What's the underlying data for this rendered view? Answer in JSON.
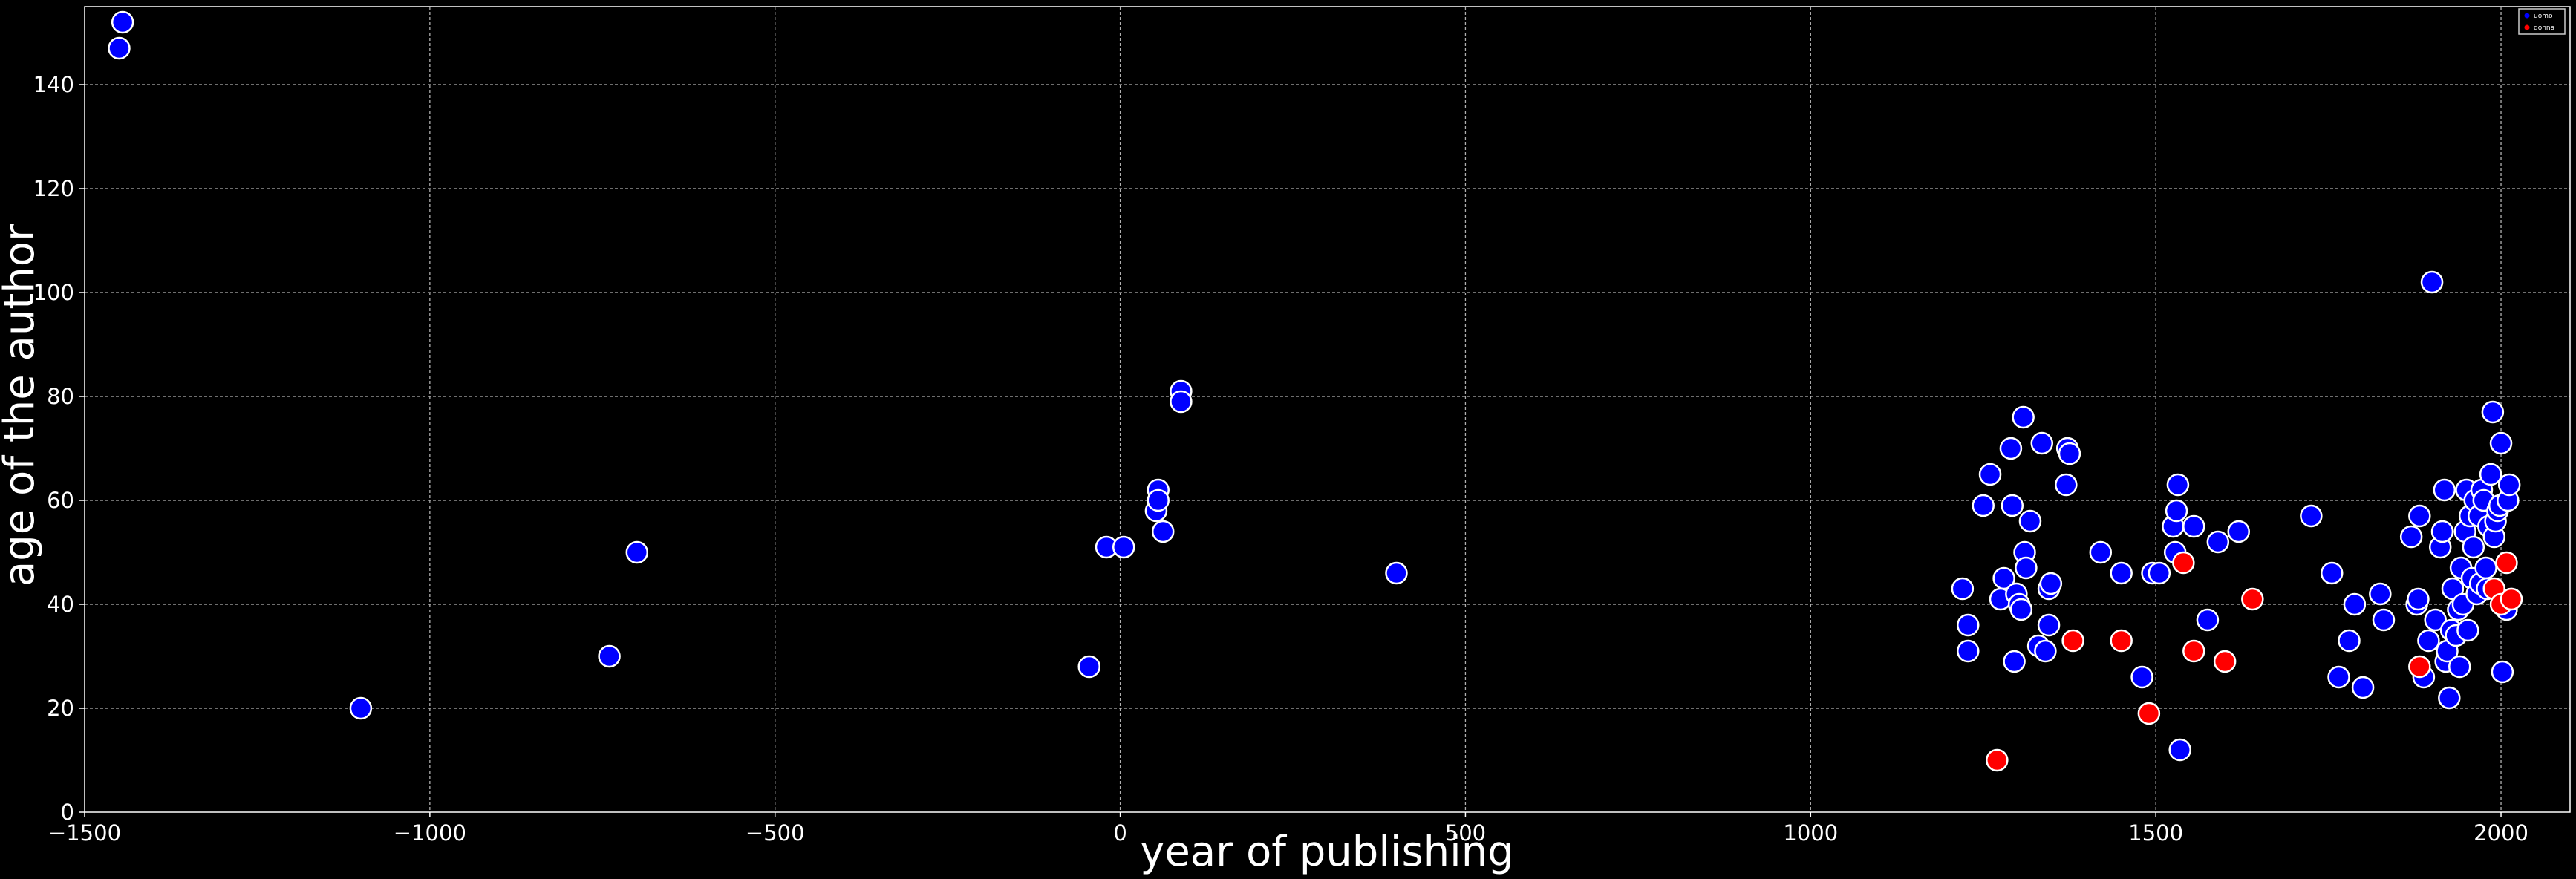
{
  "chart_data": {
    "type": "scatter",
    "title": "",
    "xlabel": "year of publishing",
    "ylabel": "age of the author",
    "xlim": [
      -1500,
      2100
    ],
    "ylim": [
      0,
      155
    ],
    "x_ticks": [
      -1500,
      -1000,
      -500,
      0,
      500,
      1000,
      1500,
      2000
    ],
    "x_tick_labels": [
      "−1500",
      "−1000",
      "−500",
      "0",
      "500",
      "1000",
      "1500",
      "2000"
    ],
    "y_ticks": [
      0,
      20,
      40,
      60,
      80,
      100,
      120,
      140
    ],
    "y_tick_labels": [
      "0",
      "20",
      "40",
      "60",
      "80",
      "100",
      "120",
      "140"
    ],
    "grid": true,
    "background": "#000000",
    "legend_position": "top-right",
    "legend": [
      {
        "label": "uomo",
        "color": "#0000ff"
      },
      {
        "label": "donna",
        "color": "#ff0000"
      }
    ],
    "series": [
      {
        "name": "uomo",
        "color": "#0000ff",
        "points": [
          [
            -1445,
            152
          ],
          [
            -1450,
            147
          ],
          [
            -1100,
            20
          ],
          [
            -740,
            30
          ],
          [
            -700,
            50
          ],
          [
            -45,
            28
          ],
          [
            -20,
            51
          ],
          [
            5,
            51
          ],
          [
            55,
            62
          ],
          [
            52,
            58
          ],
          [
            55,
            60
          ],
          [
            62,
            54
          ],
          [
            88,
            81
          ],
          [
            88,
            79
          ],
          [
            400,
            46
          ],
          [
            1220,
            43
          ],
          [
            1228,
            36
          ],
          [
            1228,
            31
          ],
          [
            1250,
            59
          ],
          [
            1260,
            65
          ],
          [
            1275,
            41
          ],
          [
            1280,
            45
          ],
          [
            1290,
            70
          ],
          [
            1292,
            59
          ],
          [
            1295,
            29
          ],
          [
            1298,
            42
          ],
          [
            1302,
            40
          ],
          [
            1305,
            39
          ],
          [
            1308,
            76
          ],
          [
            1310,
            50
          ],
          [
            1312,
            47
          ],
          [
            1318,
            56
          ],
          [
            1330,
            32
          ],
          [
            1335,
            71
          ],
          [
            1340,
            31
          ],
          [
            1345,
            36
          ],
          [
            1345,
            43
          ],
          [
            1348,
            44
          ],
          [
            1370,
            63
          ],
          [
            1372,
            70
          ],
          [
            1375,
            69
          ],
          [
            1420,
            50
          ],
          [
            1450,
            46
          ],
          [
            1480,
            26
          ],
          [
            1495,
            46
          ],
          [
            1505,
            46
          ],
          [
            1525,
            55
          ],
          [
            1528,
            50
          ],
          [
            1530,
            58
          ],
          [
            1532,
            63
          ],
          [
            1535,
            12
          ],
          [
            1555,
            55
          ],
          [
            1575,
            37
          ],
          [
            1590,
            52
          ],
          [
            1620,
            54
          ],
          [
            1725,
            57
          ],
          [
            1755,
            46
          ],
          [
            1765,
            26
          ],
          [
            1780,
            33
          ],
          [
            1788,
            40
          ],
          [
            1800,
            24
          ],
          [
            1825,
            42
          ],
          [
            1830,
            37
          ],
          [
            1870,
            53
          ],
          [
            1878,
            40
          ],
          [
            1880,
            41
          ],
          [
            1882,
            57
          ],
          [
            1888,
            26
          ],
          [
            1895,
            33
          ],
          [
            1900,
            102
          ],
          [
            1905,
            37
          ],
          [
            1912,
            51
          ],
          [
            1915,
            54
          ],
          [
            1918,
            62
          ],
          [
            1920,
            29
          ],
          [
            1922,
            31
          ],
          [
            1925,
            22
          ],
          [
            1928,
            35
          ],
          [
            1930,
            43
          ],
          [
            1935,
            34
          ],
          [
            1938,
            39
          ],
          [
            1940,
            28
          ],
          [
            1942,
            47
          ],
          [
            1945,
            40
          ],
          [
            1948,
            54
          ],
          [
            1950,
            62
          ],
          [
            1952,
            35
          ],
          [
            1955,
            57
          ],
          [
            1958,
            45
          ],
          [
            1960,
            51
          ],
          [
            1962,
            60
          ],
          [
            1965,
            42
          ],
          [
            1968,
            57
          ],
          [
            1970,
            44
          ],
          [
            1972,
            62
          ],
          [
            1975,
            60
          ],
          [
            1978,
            47
          ],
          [
            1980,
            43
          ],
          [
            1982,
            55
          ],
          [
            1985,
            65
          ],
          [
            1988,
            77
          ],
          [
            1990,
            53
          ],
          [
            1992,
            56
          ],
          [
            1995,
            58
          ],
          [
            1998,
            59
          ],
          [
            2000,
            71
          ],
          [
            2002,
            27
          ],
          [
            2005,
            40
          ],
          [
            2008,
            39
          ],
          [
            2010,
            60
          ],
          [
            2012,
            63
          ],
          [
            2015,
            41
          ]
        ]
      },
      {
        "name": "donna",
        "color": "#ff0000",
        "points": [
          [
            1270,
            10
          ],
          [
            1380,
            33
          ],
          [
            1450,
            33
          ],
          [
            1490,
            19
          ],
          [
            1540,
            48
          ],
          [
            1555,
            31
          ],
          [
            1600,
            29
          ],
          [
            1640,
            41
          ],
          [
            1882,
            28
          ],
          [
            1990,
            43
          ],
          [
            2000,
            40
          ],
          [
            2008,
            48
          ],
          [
            2015,
            41
          ]
        ]
      }
    ]
  }
}
